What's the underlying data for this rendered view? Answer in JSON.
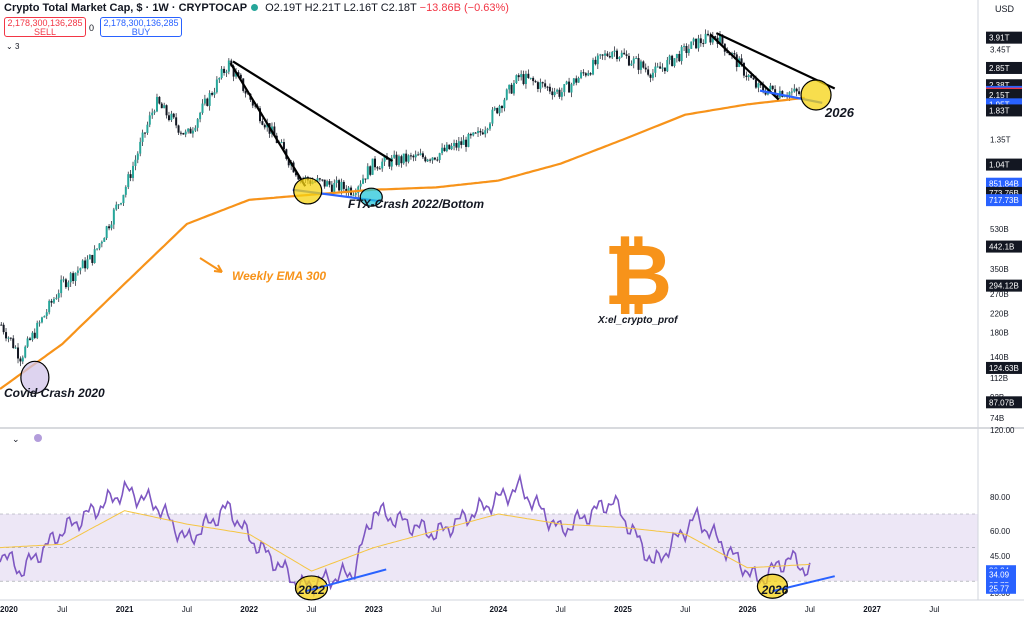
{
  "header": {
    "title": "Crypto Total Market Cap, $ · 1W · CRYPTOCAP",
    "ohlc": "O2.19T H2.21T L2.16T C2.18T",
    "change": "−13.86B (−0.63%)"
  },
  "trade": {
    "sell_value": "2,178,300,136,285",
    "sell_label": "SELL",
    "spread": "0",
    "buy_value": "2,178,300,136,285",
    "buy_label": "BUY",
    "collapse_label": "3"
  },
  "currency": "USD",
  "chart_data": [
    {
      "type": "candlestick",
      "title": "Crypto Total Market Cap, $ · 1W · CRYPTOCAP",
      "y_scale": "log",
      "y_ticks": [
        "3.45T",
        "1.35T",
        "530B",
        "350B",
        "270B",
        "220B",
        "180B",
        "140B",
        "112B",
        "92B",
        "74B"
      ],
      "price_tags": [
        {
          "label": "3.91T",
          "color": "#131722"
        },
        {
          "label": "2.85T",
          "color": "#131722"
        },
        {
          "label": "2.38T",
          "color": "#131722"
        },
        {
          "label": "2.22T",
          "color": "#2962ff"
        },
        {
          "label": "2.18T",
          "color": "#f23645"
        },
        {
          "label": "6d 16h",
          "color": "#f23645"
        },
        {
          "label": "2.15T",
          "color": "#131722"
        },
        {
          "label": "1.95T",
          "color": "#2962ff"
        },
        {
          "label": "1.83T",
          "color": "#131722"
        },
        {
          "label": "1.04T",
          "color": "#131722"
        },
        {
          "label": "851.84B",
          "color": "#2962ff"
        },
        {
          "label": "773.76B",
          "color": "#131722"
        },
        {
          "label": "717.73B",
          "color": "#2962ff"
        },
        {
          "label": "442.1B",
          "color": "#131722"
        },
        {
          "label": "294.12B",
          "color": "#131722"
        },
        {
          "label": "124.63B",
          "color": "#131722"
        },
        {
          "label": "87.07B",
          "color": "#131722"
        }
      ],
      "series": [
        {
          "name": "Weekly EMA 300",
          "color": "#f7931a",
          "x": [
            "2020-01",
            "2020-07",
            "2021-01",
            "2021-07",
            "2022-01",
            "2022-07",
            "2023-01",
            "2023-07",
            "2024-01",
            "2024-07",
            "2025-01",
            "2025-07",
            "2026-01",
            "2026-07"
          ],
          "values": [
            100,
            160,
            300,
            560,
            720,
            760,
            800,
            820,
            880,
            1050,
            1350,
            1750,
            1950,
            2100
          ]
        },
        {
          "name": "Total Market Cap",
          "color": "#131722",
          "x": [
            "2020-01",
            "2020-03",
            "2020-07",
            "2020-10",
            "2021-01",
            "2021-04",
            "2021-07",
            "2021-11",
            "2022-01",
            "2022-06",
            "2022-11",
            "2023-01",
            "2023-07",
            "2023-11",
            "2024-03",
            "2024-07",
            "2024-12",
            "2025-04",
            "2025-08",
            "2025-10",
            "2026-02",
            "2026-06"
          ],
          "values": [
            200,
            140,
            300,
            400,
            800,
            2000,
            1400,
            3000,
            2100,
            900,
            800,
            1050,
            1150,
            1400,
            2600,
            2200,
            3450,
            2700,
            3700,
            4000,
            2300,
            2180
          ]
        }
      ],
      "annotations": [
        {
          "text": "Weekly EMA 300",
          "color": "#f7931a"
        },
        {
          "text": "FTX-Crash 2022/Bottom",
          "color": "#131722"
        },
        {
          "text": "Covid Crash 2020",
          "color": "#131722"
        },
        {
          "text": "2026",
          "color": "#131722"
        },
        {
          "text": "X:el_crypto_prof",
          "color": "#131722"
        }
      ]
    },
    {
      "type": "line",
      "title": "",
      "ylim": [
        20,
        120
      ],
      "y_ticks": [
        "120.00",
        "80.00",
        "60.00",
        "45.00",
        "23.00"
      ],
      "value_tags": [
        {
          "label": "36.24",
          "color": "#2962ff"
        },
        {
          "label": "34.09",
          "color": "#2962ff"
        },
        {
          "label": "27.75",
          "color": "#2962ff"
        },
        {
          "label": "25.77",
          "color": "#2962ff"
        }
      ],
      "bands": {
        "upper": 70,
        "middle": 50,
        "lower": 30
      },
      "series": [
        {
          "name": "",
          "color": "#7e57c2",
          "x": [
            "2020-01",
            "2020-03",
            "2020-07",
            "2021-01",
            "2021-04",
            "2021-07",
            "2021-11",
            "2022-01",
            "2022-06",
            "2022-11",
            "2023-01",
            "2023-07",
            "2024-03",
            "2024-07",
            "2024-12",
            "2025-04",
            "2025-08",
            "2026-02",
            "2026-05",
            "2026-07"
          ],
          "values": [
            48,
            36,
            60,
            84,
            76,
            54,
            74,
            56,
            27,
            35,
            72,
            58,
            86,
            60,
            78,
            40,
            68,
            30,
            44,
            36
          ]
        },
        {
          "name": "",
          "color": "#f5c542",
          "x": [
            "2020-01",
            "2020-07",
            "2021-01",
            "2021-07",
            "2022-01",
            "2022-07",
            "2023-01",
            "2023-07",
            "2024-01",
            "2024-07",
            "2025-01",
            "2025-07",
            "2026-01",
            "2026-07"
          ],
          "values": [
            50,
            52,
            72,
            64,
            58,
            36,
            50,
            60,
            70,
            64,
            62,
            58,
            38,
            40
          ]
        }
      ],
      "annotations": [
        {
          "text": "2022"
        },
        {
          "text": "2026"
        }
      ]
    }
  ],
  "time_axis": [
    "2020",
    "Jul",
    "2021",
    "Jul",
    "2022",
    "Jul",
    "2023",
    "Jul",
    "2024",
    "Jul",
    "2025",
    "Jul",
    "2026",
    "Jul",
    "2027",
    "Jul"
  ],
  "logo": "bitcoin-logo"
}
